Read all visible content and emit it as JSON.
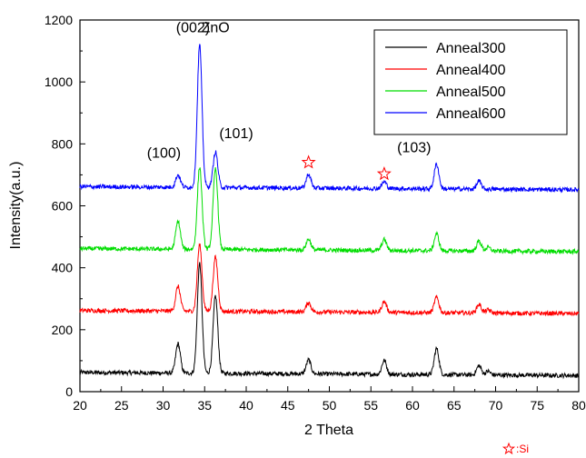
{
  "chart_data": {
    "type": "line",
    "title": "",
    "xlabel": "2 Theta",
    "ylabel": "Intensity(a.u.)",
    "xlim": [
      20,
      80
    ],
    "ylim": [
      0,
      1200
    ],
    "xticks": [
      20,
      25,
      30,
      35,
      40,
      45,
      50,
      55,
      60,
      65,
      70,
      75,
      80
    ],
    "yticks": [
      0,
      200,
      400,
      600,
      800,
      1000,
      1200
    ],
    "grid": false,
    "legend_position": "top-right",
    "peaks_note": "Peaks listed as [2theta, height above baseline]",
    "series": [
      {
        "name": "Anneal300",
        "color": "#000000",
        "baseline_start": 62,
        "baseline_end": 52,
        "peaks": [
          [
            31.8,
            95
          ],
          [
            34.4,
            355
          ],
          [
            36.3,
            250
          ],
          [
            47.5,
            45
          ],
          [
            56.6,
            45
          ],
          [
            62.9,
            85
          ],
          [
            68.0,
            30
          ],
          [
            69.1,
            12
          ]
        ]
      },
      {
        "name": "Anneal400",
        "color": "#ff0000",
        "baseline_start": 262,
        "baseline_end": 252,
        "peaks": [
          [
            31.8,
            80
          ],
          [
            34.4,
            215
          ],
          [
            36.3,
            175
          ],
          [
            47.5,
            30
          ],
          [
            56.6,
            35
          ],
          [
            62.9,
            50
          ],
          [
            68.0,
            28
          ],
          [
            69.1,
            10
          ]
        ]
      },
      {
        "name": "Anneal500",
        "color": "#00dd00",
        "baseline_start": 462,
        "baseline_end": 452,
        "peaks": [
          [
            31.8,
            90
          ],
          [
            34.4,
            265
          ],
          [
            36.3,
            260
          ],
          [
            47.5,
            35
          ],
          [
            56.6,
            35
          ],
          [
            62.9,
            55
          ],
          [
            68.0,
            32
          ],
          [
            69.1,
            12
          ]
        ]
      },
      {
        "name": "Anneal600",
        "color": "#0000ff",
        "baseline_start": 662,
        "baseline_end": 652,
        "peaks": [
          [
            31.8,
            40
          ],
          [
            34.4,
            460
          ],
          [
            36.3,
            115
          ],
          [
            47.5,
            45
          ],
          [
            56.6,
            22
          ],
          [
            62.9,
            80
          ],
          [
            68.0,
            25
          ]
        ]
      }
    ],
    "annotations": [
      {
        "text": "(100)",
        "x": 30.1,
        "y": 755,
        "color": "#000000"
      },
      {
        "text": "(002)",
        "x": 33.6,
        "y": 1160,
        "color": "#000000"
      },
      {
        "text": "ZnO",
        "x": 36.3,
        "y": 1160,
        "color": "#ff0000"
      },
      {
        "text": "(101)",
        "x": 38.8,
        "y": 818,
        "color": "#000000"
      },
      {
        "text": "(103)",
        "x": 60.2,
        "y": 773,
        "color": "#000000"
      }
    ],
    "si_markers": [
      {
        "x": 47.5,
        "y": 740
      },
      {
        "x": 56.6,
        "y": 703
      }
    ],
    "si_legend": {
      "text": ":Si",
      "color": "#ff0000"
    }
  }
}
